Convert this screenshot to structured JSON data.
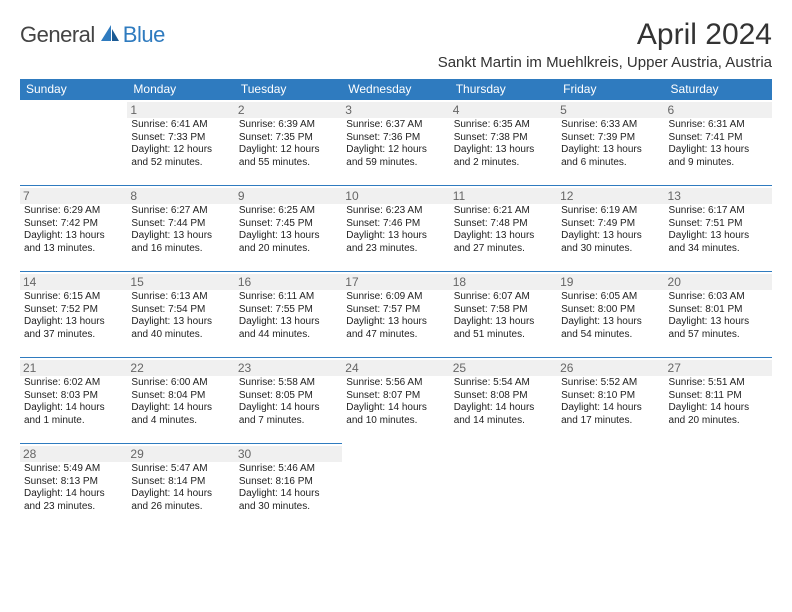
{
  "brand": {
    "part1": "General",
    "part2": "Blue"
  },
  "title": "April 2024",
  "location": "Sankt Martin im Muehlkreis, Upper Austria, Austria",
  "colors": {
    "accent": "#2f7bbf",
    "text": "#222222",
    "muted": "#666666",
    "bg": "#ffffff",
    "daynum_bg": "#f0f0f0"
  },
  "fonts": {
    "title_size": 30,
    "location_size": 15,
    "header_size": 12,
    "cell_size": 10
  },
  "columns": [
    "Sunday",
    "Monday",
    "Tuesday",
    "Wednesday",
    "Thursday",
    "Friday",
    "Saturday"
  ],
  "weeks": [
    [
      null,
      {
        "n": "1",
        "sr": "Sunrise: 6:41 AM",
        "ss": "Sunset: 7:33 PM",
        "d1": "Daylight: 12 hours",
        "d2": "and 52 minutes."
      },
      {
        "n": "2",
        "sr": "Sunrise: 6:39 AM",
        "ss": "Sunset: 7:35 PM",
        "d1": "Daylight: 12 hours",
        "d2": "and 55 minutes."
      },
      {
        "n": "3",
        "sr": "Sunrise: 6:37 AM",
        "ss": "Sunset: 7:36 PM",
        "d1": "Daylight: 12 hours",
        "d2": "and 59 minutes."
      },
      {
        "n": "4",
        "sr": "Sunrise: 6:35 AM",
        "ss": "Sunset: 7:38 PM",
        "d1": "Daylight: 13 hours",
        "d2": "and 2 minutes."
      },
      {
        "n": "5",
        "sr": "Sunrise: 6:33 AM",
        "ss": "Sunset: 7:39 PM",
        "d1": "Daylight: 13 hours",
        "d2": "and 6 minutes."
      },
      {
        "n": "6",
        "sr": "Sunrise: 6:31 AM",
        "ss": "Sunset: 7:41 PM",
        "d1": "Daylight: 13 hours",
        "d2": "and 9 minutes."
      }
    ],
    [
      {
        "n": "7",
        "sr": "Sunrise: 6:29 AM",
        "ss": "Sunset: 7:42 PM",
        "d1": "Daylight: 13 hours",
        "d2": "and 13 minutes."
      },
      {
        "n": "8",
        "sr": "Sunrise: 6:27 AM",
        "ss": "Sunset: 7:44 PM",
        "d1": "Daylight: 13 hours",
        "d2": "and 16 minutes."
      },
      {
        "n": "9",
        "sr": "Sunrise: 6:25 AM",
        "ss": "Sunset: 7:45 PM",
        "d1": "Daylight: 13 hours",
        "d2": "and 20 minutes."
      },
      {
        "n": "10",
        "sr": "Sunrise: 6:23 AM",
        "ss": "Sunset: 7:46 PM",
        "d1": "Daylight: 13 hours",
        "d2": "and 23 minutes."
      },
      {
        "n": "11",
        "sr": "Sunrise: 6:21 AM",
        "ss": "Sunset: 7:48 PM",
        "d1": "Daylight: 13 hours",
        "d2": "and 27 minutes."
      },
      {
        "n": "12",
        "sr": "Sunrise: 6:19 AM",
        "ss": "Sunset: 7:49 PM",
        "d1": "Daylight: 13 hours",
        "d2": "and 30 minutes."
      },
      {
        "n": "13",
        "sr": "Sunrise: 6:17 AM",
        "ss": "Sunset: 7:51 PM",
        "d1": "Daylight: 13 hours",
        "d2": "and 34 minutes."
      }
    ],
    [
      {
        "n": "14",
        "sr": "Sunrise: 6:15 AM",
        "ss": "Sunset: 7:52 PM",
        "d1": "Daylight: 13 hours",
        "d2": "and 37 minutes."
      },
      {
        "n": "15",
        "sr": "Sunrise: 6:13 AM",
        "ss": "Sunset: 7:54 PM",
        "d1": "Daylight: 13 hours",
        "d2": "and 40 minutes."
      },
      {
        "n": "16",
        "sr": "Sunrise: 6:11 AM",
        "ss": "Sunset: 7:55 PM",
        "d1": "Daylight: 13 hours",
        "d2": "and 44 minutes."
      },
      {
        "n": "17",
        "sr": "Sunrise: 6:09 AM",
        "ss": "Sunset: 7:57 PM",
        "d1": "Daylight: 13 hours",
        "d2": "and 47 minutes."
      },
      {
        "n": "18",
        "sr": "Sunrise: 6:07 AM",
        "ss": "Sunset: 7:58 PM",
        "d1": "Daylight: 13 hours",
        "d2": "and 51 minutes."
      },
      {
        "n": "19",
        "sr": "Sunrise: 6:05 AM",
        "ss": "Sunset: 8:00 PM",
        "d1": "Daylight: 13 hours",
        "d2": "and 54 minutes."
      },
      {
        "n": "20",
        "sr": "Sunrise: 6:03 AM",
        "ss": "Sunset: 8:01 PM",
        "d1": "Daylight: 13 hours",
        "d2": "and 57 minutes."
      }
    ],
    [
      {
        "n": "21",
        "sr": "Sunrise: 6:02 AM",
        "ss": "Sunset: 8:03 PM",
        "d1": "Daylight: 14 hours",
        "d2": "and 1 minute."
      },
      {
        "n": "22",
        "sr": "Sunrise: 6:00 AM",
        "ss": "Sunset: 8:04 PM",
        "d1": "Daylight: 14 hours",
        "d2": "and 4 minutes."
      },
      {
        "n": "23",
        "sr": "Sunrise: 5:58 AM",
        "ss": "Sunset: 8:05 PM",
        "d1": "Daylight: 14 hours",
        "d2": "and 7 minutes."
      },
      {
        "n": "24",
        "sr": "Sunrise: 5:56 AM",
        "ss": "Sunset: 8:07 PM",
        "d1": "Daylight: 14 hours",
        "d2": "and 10 minutes."
      },
      {
        "n": "25",
        "sr": "Sunrise: 5:54 AM",
        "ss": "Sunset: 8:08 PM",
        "d1": "Daylight: 14 hours",
        "d2": "and 14 minutes."
      },
      {
        "n": "26",
        "sr": "Sunrise: 5:52 AM",
        "ss": "Sunset: 8:10 PM",
        "d1": "Daylight: 14 hours",
        "d2": "and 17 minutes."
      },
      {
        "n": "27",
        "sr": "Sunrise: 5:51 AM",
        "ss": "Sunset: 8:11 PM",
        "d1": "Daylight: 14 hours",
        "d2": "and 20 minutes."
      }
    ],
    [
      {
        "n": "28",
        "sr": "Sunrise: 5:49 AM",
        "ss": "Sunset: 8:13 PM",
        "d1": "Daylight: 14 hours",
        "d2": "and 23 minutes."
      },
      {
        "n": "29",
        "sr": "Sunrise: 5:47 AM",
        "ss": "Sunset: 8:14 PM",
        "d1": "Daylight: 14 hours",
        "d2": "and 26 minutes."
      },
      {
        "n": "30",
        "sr": "Sunrise: 5:46 AM",
        "ss": "Sunset: 8:16 PM",
        "d1": "Daylight: 14 hours",
        "d2": "and 30 minutes."
      },
      null,
      null,
      null,
      null
    ]
  ]
}
